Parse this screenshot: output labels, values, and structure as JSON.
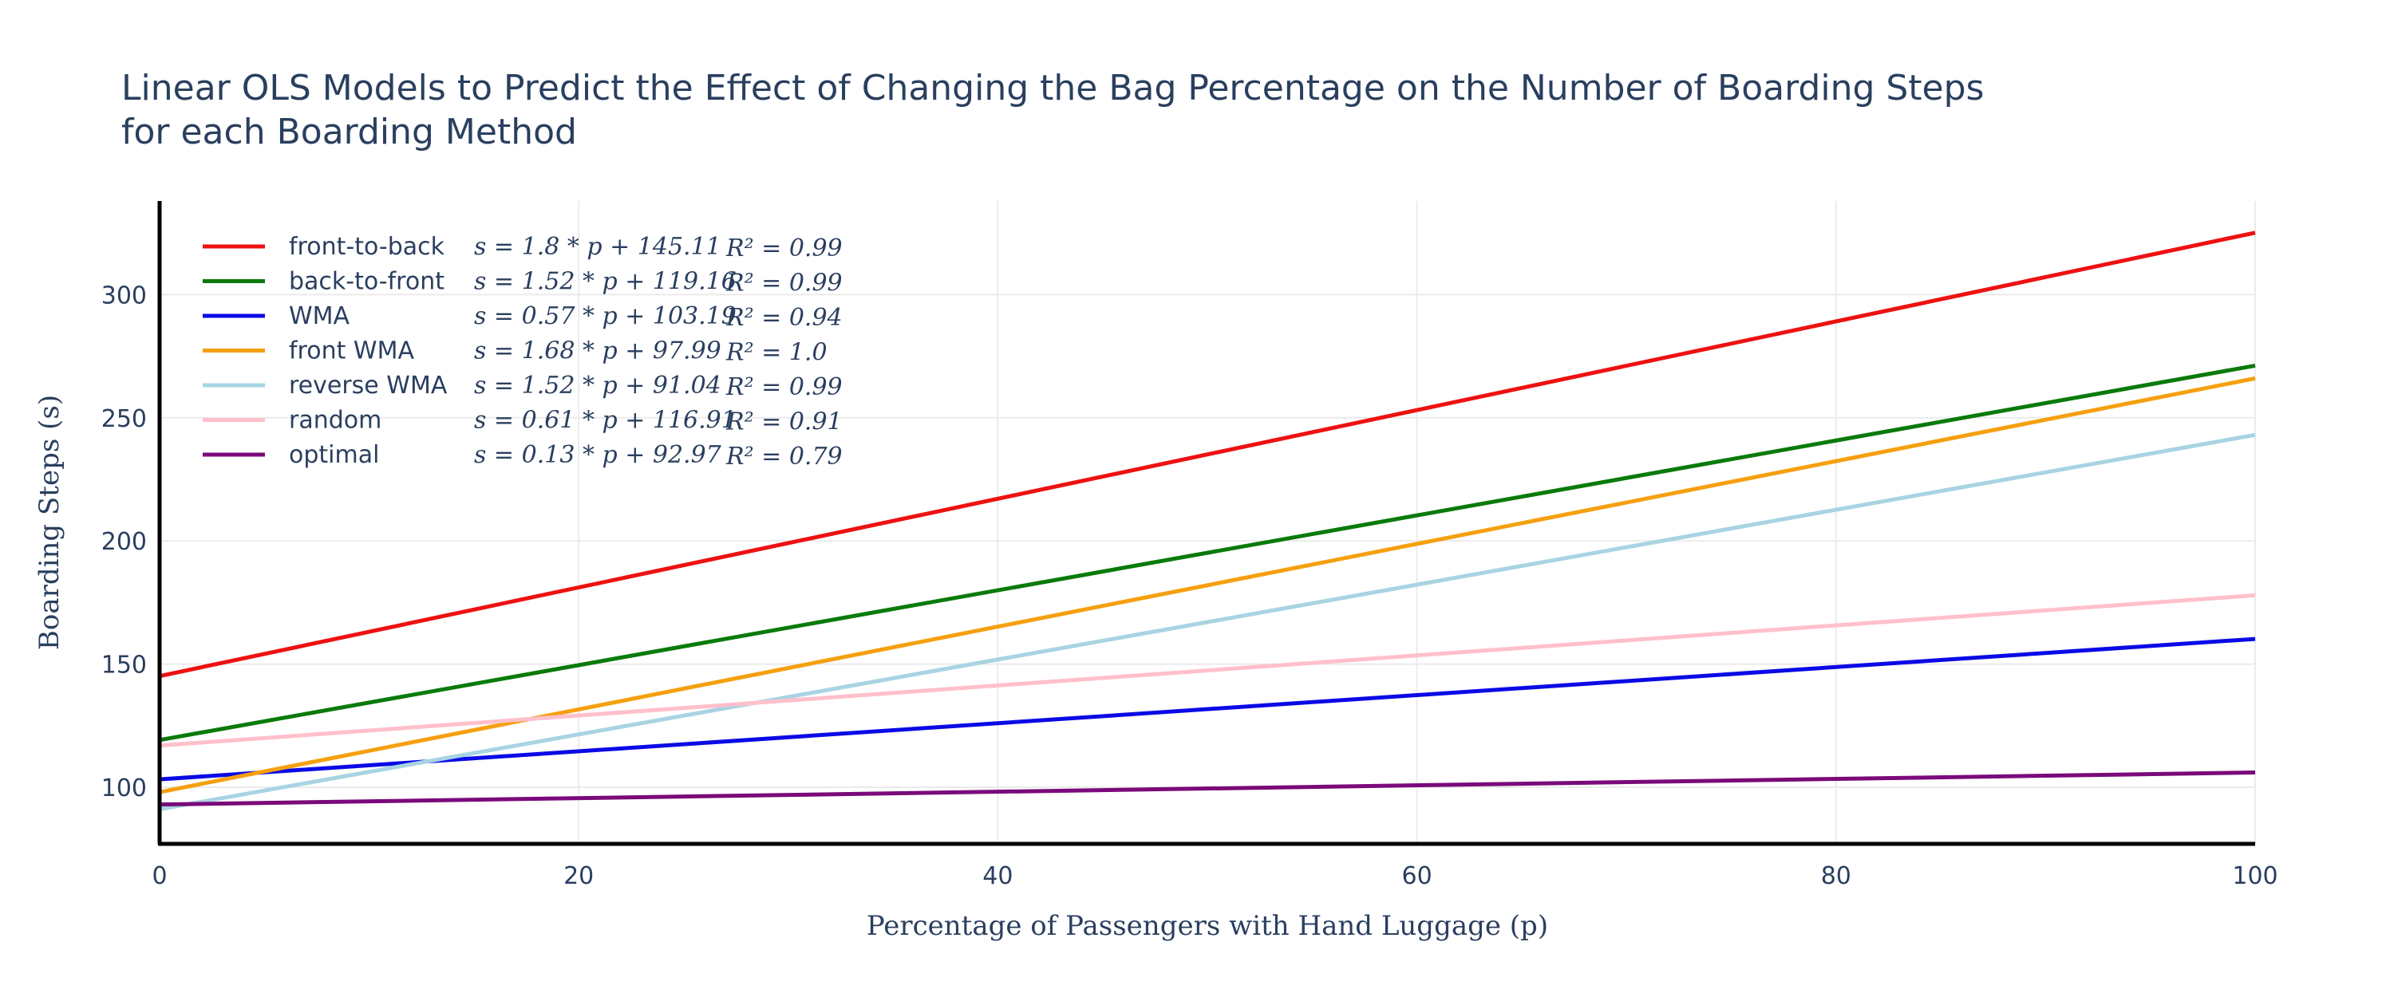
{
  "chart_data": {
    "type": "line",
    "title_lines": [
      "Linear OLS Models to Predict the Effect of Changing the Bag Percentage on the Number of Boarding Steps",
      "for each Boarding Method"
    ],
    "xlabel": "Percentage of Passengers with Hand Luggage (p)",
    "ylabel": "Boarding Steps (s)",
    "xlim": [
      0,
      100
    ],
    "ylim": [
      77,
      338
    ],
    "x_ticks": [
      0,
      20,
      40,
      60,
      80,
      100
    ],
    "y_ticks": [
      100,
      150,
      200,
      250,
      300
    ],
    "grid": true,
    "legend_position": "top-left",
    "series": [
      {
        "name": "front-to-back",
        "equation": "s = 1.8 * p + 145.11",
        "r2": "R² = 0.99",
        "slope": 1.8,
        "intercept": 145.11,
        "color": "#ee1111",
        "x": [
          0,
          100
        ],
        "y": [
          145.11,
          325.11
        ]
      },
      {
        "name": "back-to-front",
        "equation": "s = 1.52 * p + 119.16",
        "r2": "R² = 0.99",
        "slope": 1.52,
        "intercept": 119.16,
        "color": "#0a7a0a",
        "x": [
          0,
          100
        ],
        "y": [
          119.16,
          271.16
        ]
      },
      {
        "name": "WMA",
        "equation": "s = 0.57 * p + 103.19",
        "r2": "R² = 0.94",
        "slope": 0.57,
        "intercept": 103.19,
        "color": "#0a0ae6",
        "x": [
          0,
          100
        ],
        "y": [
          103.19,
          160.19
        ]
      },
      {
        "name": "front WMA",
        "equation": "s = 1.68 * p + 97.99",
        "r2": "R² = 1.0",
        "slope": 1.68,
        "intercept": 97.99,
        "color": "#f5a010",
        "x": [
          0,
          100
        ],
        "y": [
          97.99,
          265.99
        ]
      },
      {
        "name": "reverse WMA",
        "equation": "s = 1.52 * p + 91.04",
        "r2": "R² = 0.99",
        "slope": 1.52,
        "intercept": 91.04,
        "color": "#a8d4e2",
        "x": [
          0,
          100
        ],
        "y": [
          91.04,
          243.04
        ]
      },
      {
        "name": "random",
        "equation": "s = 0.61 * p + 116.91",
        "r2": "R² = 0.91",
        "slope": 0.61,
        "intercept": 116.91,
        "color": "#ffc0cb",
        "x": [
          0,
          100
        ],
        "y": [
          116.91,
          177.91
        ]
      },
      {
        "name": "optimal",
        "equation": "s = 0.13 * p + 92.97",
        "r2": "R² = 0.79",
        "slope": 0.13,
        "intercept": 92.97,
        "color": "#7a0a7a",
        "x": [
          0,
          100
        ],
        "y": [
          92.97,
          105.97
        ]
      }
    ]
  }
}
